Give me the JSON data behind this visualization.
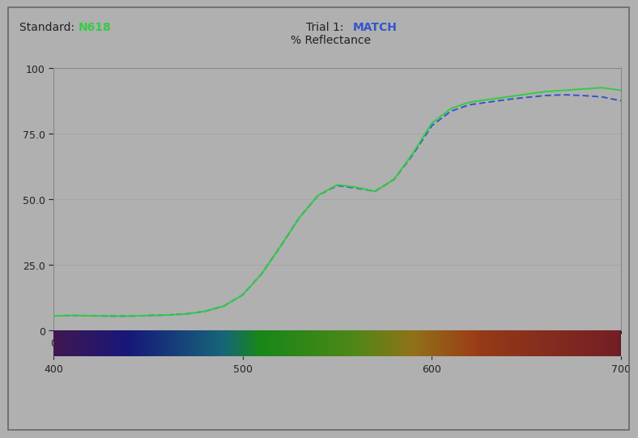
{
  "title_left": "Standard: ",
  "title_left_colored": "N618",
  "title_right": "Trial 1: ",
  "title_right_colored": "MATCH",
  "ylabel": "% Reflectance",
  "xlim": [
    400,
    700
  ],
  "ylim": [
    0,
    100
  ],
  "yticks": [
    0,
    25.0,
    50.0,
    75.0,
    100
  ],
  "xticks": [
    400,
    500,
    600,
    700
  ],
  "background_color": "#b0b0b0",
  "plot_bg_color": "#b0b0b0",
  "standard_color": "#33cc44",
  "trial_color": "#3355cc",
  "standard_label": "N618",
  "trial_label": "MATCH",
  "title_color": "#222222",
  "tick_label_color": "#222222",
  "wavelengths": [
    400,
    410,
    420,
    430,
    440,
    450,
    460,
    470,
    480,
    490,
    500,
    510,
    520,
    530,
    540,
    550,
    560,
    570,
    580,
    590,
    600,
    610,
    620,
    630,
    640,
    650,
    660,
    670,
    680,
    690,
    700
  ],
  "standard_reflectance": [
    5.5,
    5.6,
    5.5,
    5.4,
    5.4,
    5.6,
    5.8,
    6.2,
    7.2,
    9.2,
    13.5,
    21.5,
    32.0,
    43.0,
    51.5,
    55.5,
    54.5,
    53.0,
    57.5,
    67.5,
    79.0,
    84.5,
    87.0,
    88.0,
    89.0,
    90.0,
    91.0,
    91.5,
    92.0,
    92.5,
    91.5
  ],
  "trial_reflectance": [
    5.5,
    5.6,
    5.5,
    5.4,
    5.4,
    5.6,
    5.8,
    6.2,
    7.2,
    9.2,
    13.5,
    21.5,
    32.0,
    43.0,
    51.5,
    55.2,
    54.2,
    53.0,
    57.5,
    67.0,
    78.0,
    83.5,
    86.0,
    87.0,
    88.0,
    88.8,
    89.5,
    89.8,
    89.5,
    89.0,
    87.5
  ]
}
